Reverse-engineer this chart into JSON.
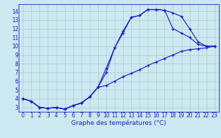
{
  "xlabel": "Graphe des températures (°C)",
  "bg_color": "#cce8f0",
  "grid_color": "#aacccc",
  "line_color": "#1a1acc",
  "xlim": [
    -0.5,
    23.5
  ],
  "ylim": [
    2.5,
    14.8
  ],
  "xticks": [
    0,
    1,
    2,
    3,
    4,
    5,
    6,
    7,
    8,
    9,
    10,
    11,
    12,
    13,
    14,
    15,
    16,
    17,
    18,
    19,
    20,
    21,
    22,
    23
  ],
  "yticks": [
    3,
    4,
    5,
    6,
    7,
    8,
    9,
    10,
    11,
    12,
    13,
    14
  ],
  "line1_x": [
    0,
    1,
    2,
    3,
    4,
    5,
    6,
    7,
    8,
    9,
    10,
    11,
    12,
    13,
    14,
    15,
    16,
    17,
    18,
    19,
    20,
    21,
    22,
    23
  ],
  "line1_y": [
    4.0,
    3.7,
    3.0,
    2.9,
    3.0,
    2.8,
    3.2,
    3.5,
    4.2,
    5.3,
    7.5,
    9.8,
    11.7,
    13.3,
    13.5,
    14.2,
    14.2,
    14.1,
    13.8,
    13.4,
    12.0,
    10.5,
    10.0,
    10.0
  ],
  "line2_x": [
    0,
    1,
    2,
    3,
    4,
    5,
    6,
    7,
    8,
    9,
    10,
    11,
    12,
    13,
    14,
    15,
    16,
    17,
    18,
    19,
    20,
    21,
    22,
    23
  ],
  "line2_y": [
    4.0,
    3.7,
    3.0,
    2.9,
    3.0,
    2.8,
    3.2,
    3.5,
    4.2,
    5.3,
    7.0,
    9.8,
    11.5,
    13.3,
    13.5,
    14.2,
    14.2,
    14.1,
    12.0,
    11.5,
    11.0,
    10.2,
    10.0,
    10.0
  ],
  "line3_x": [
    0,
    1,
    2,
    3,
    4,
    5,
    6,
    7,
    8,
    9,
    10,
    11,
    12,
    13,
    14,
    15,
    16,
    17,
    18,
    19,
    20,
    21,
    22,
    23
  ],
  "line3_y": [
    4.0,
    3.7,
    3.0,
    2.9,
    3.0,
    2.8,
    3.2,
    3.5,
    4.2,
    5.3,
    5.5,
    6.0,
    6.5,
    6.9,
    7.3,
    7.8,
    8.2,
    8.6,
    9.0,
    9.4,
    9.6,
    9.7,
    9.8,
    10.0
  ],
  "tick_fontsize": 5.5,
  "xlabel_fontsize": 6.5
}
